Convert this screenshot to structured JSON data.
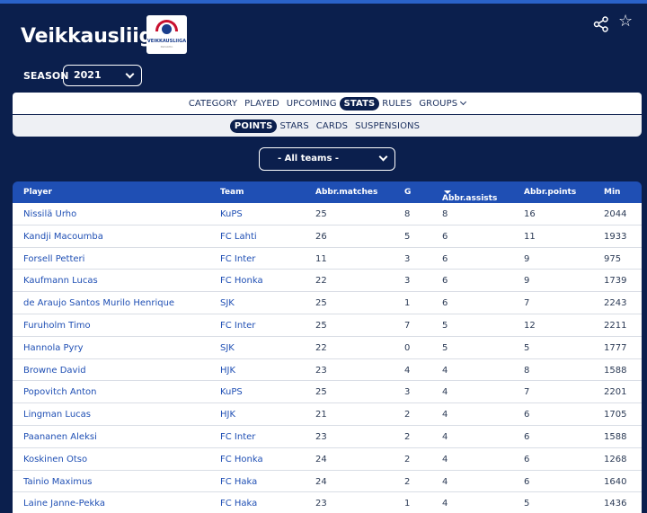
{
  "header": {
    "title": "Veikkausliiga",
    "logo_text": "VEIKKAUSLIIGA",
    "logo_sub": "Palloliitto"
  },
  "season": {
    "label": "SEASON",
    "value": "2021"
  },
  "nav": {
    "primary": [
      {
        "label": "CATEGORY",
        "active": false
      },
      {
        "label": "PLAYED",
        "active": false
      },
      {
        "label": "UPCOMING",
        "active": false
      },
      {
        "label": "STATS",
        "active": true
      },
      {
        "label": "RULES",
        "active": false
      },
      {
        "label": "GROUPS",
        "active": false
      }
    ],
    "secondary": [
      {
        "label": "POINTS",
        "active": true
      },
      {
        "label": "STARS",
        "active": false
      },
      {
        "label": "CARDS",
        "active": false
      },
      {
        "label": "SUSPENSIONS",
        "active": false
      }
    ]
  },
  "team_filter": {
    "value": "- All teams -"
  },
  "table": {
    "headers": {
      "player": "Player",
      "team": "Team",
      "matches": "Abbr.matches",
      "goals": "G",
      "assists": "Abbr.assists",
      "points": "Abbr.points",
      "minutes": "Min"
    },
    "rows": [
      {
        "player": "Nissilä Urho",
        "team": "KuPS",
        "matches": "25",
        "goals": "8",
        "assists": "8",
        "points": "16",
        "minutes": "2044"
      },
      {
        "player": "Kandji Macoumba",
        "team": "FC Lahti",
        "matches": "26",
        "goals": "5",
        "assists": "6",
        "points": "11",
        "minutes": "1933"
      },
      {
        "player": "Forsell Petteri",
        "team": "FC Inter",
        "matches": "11",
        "goals": "3",
        "assists": "6",
        "points": "9",
        "minutes": "975"
      },
      {
        "player": "Kaufmann Lucas",
        "team": "FC Honka",
        "matches": "22",
        "goals": "3",
        "assists": "6",
        "points": "9",
        "minutes": "1739"
      },
      {
        "player": "de Araujo Santos Murilo Henrique",
        "team": "SJK",
        "matches": "25",
        "goals": "1",
        "assists": "6",
        "points": "7",
        "minutes": "2243"
      },
      {
        "player": "Furuholm Timo",
        "team": "FC Inter",
        "matches": "25",
        "goals": "7",
        "assists": "5",
        "points": "12",
        "minutes": "2211"
      },
      {
        "player": "Hannola Pyry",
        "team": "SJK",
        "matches": "22",
        "goals": "0",
        "assists": "5",
        "points": "5",
        "minutes": "1777"
      },
      {
        "player": "Browne David",
        "team": "HJK",
        "matches": "23",
        "goals": "4",
        "assists": "4",
        "points": "8",
        "minutes": "1588"
      },
      {
        "player": "Popovitch Anton",
        "team": "KuPS",
        "matches": "25",
        "goals": "3",
        "assists": "4",
        "points": "7",
        "minutes": "2201"
      },
      {
        "player": "Lingman Lucas",
        "team": "HJK",
        "matches": "21",
        "goals": "2",
        "assists": "4",
        "points": "6",
        "minutes": "1705"
      },
      {
        "player": "Paananen Aleksi",
        "team": "FC Inter",
        "matches": "23",
        "goals": "2",
        "assists": "4",
        "points": "6",
        "minutes": "1588"
      },
      {
        "player": "Koskinen Otso",
        "team": "FC Honka",
        "matches": "24",
        "goals": "2",
        "assists": "4",
        "points": "6",
        "minutes": "1268"
      },
      {
        "player": "Tainio Maximus",
        "team": "FC Haka",
        "matches": "24",
        "goals": "2",
        "assists": "4",
        "points": "6",
        "minutes": "1640"
      },
      {
        "player": "Laine Janne-Pekka",
        "team": "FC Haka",
        "matches": "23",
        "goals": "1",
        "assists": "4",
        "points": "5",
        "minutes": "1436"
      }
    ]
  },
  "icons": {
    "share": "share-icon",
    "favorite": "star-icon"
  }
}
